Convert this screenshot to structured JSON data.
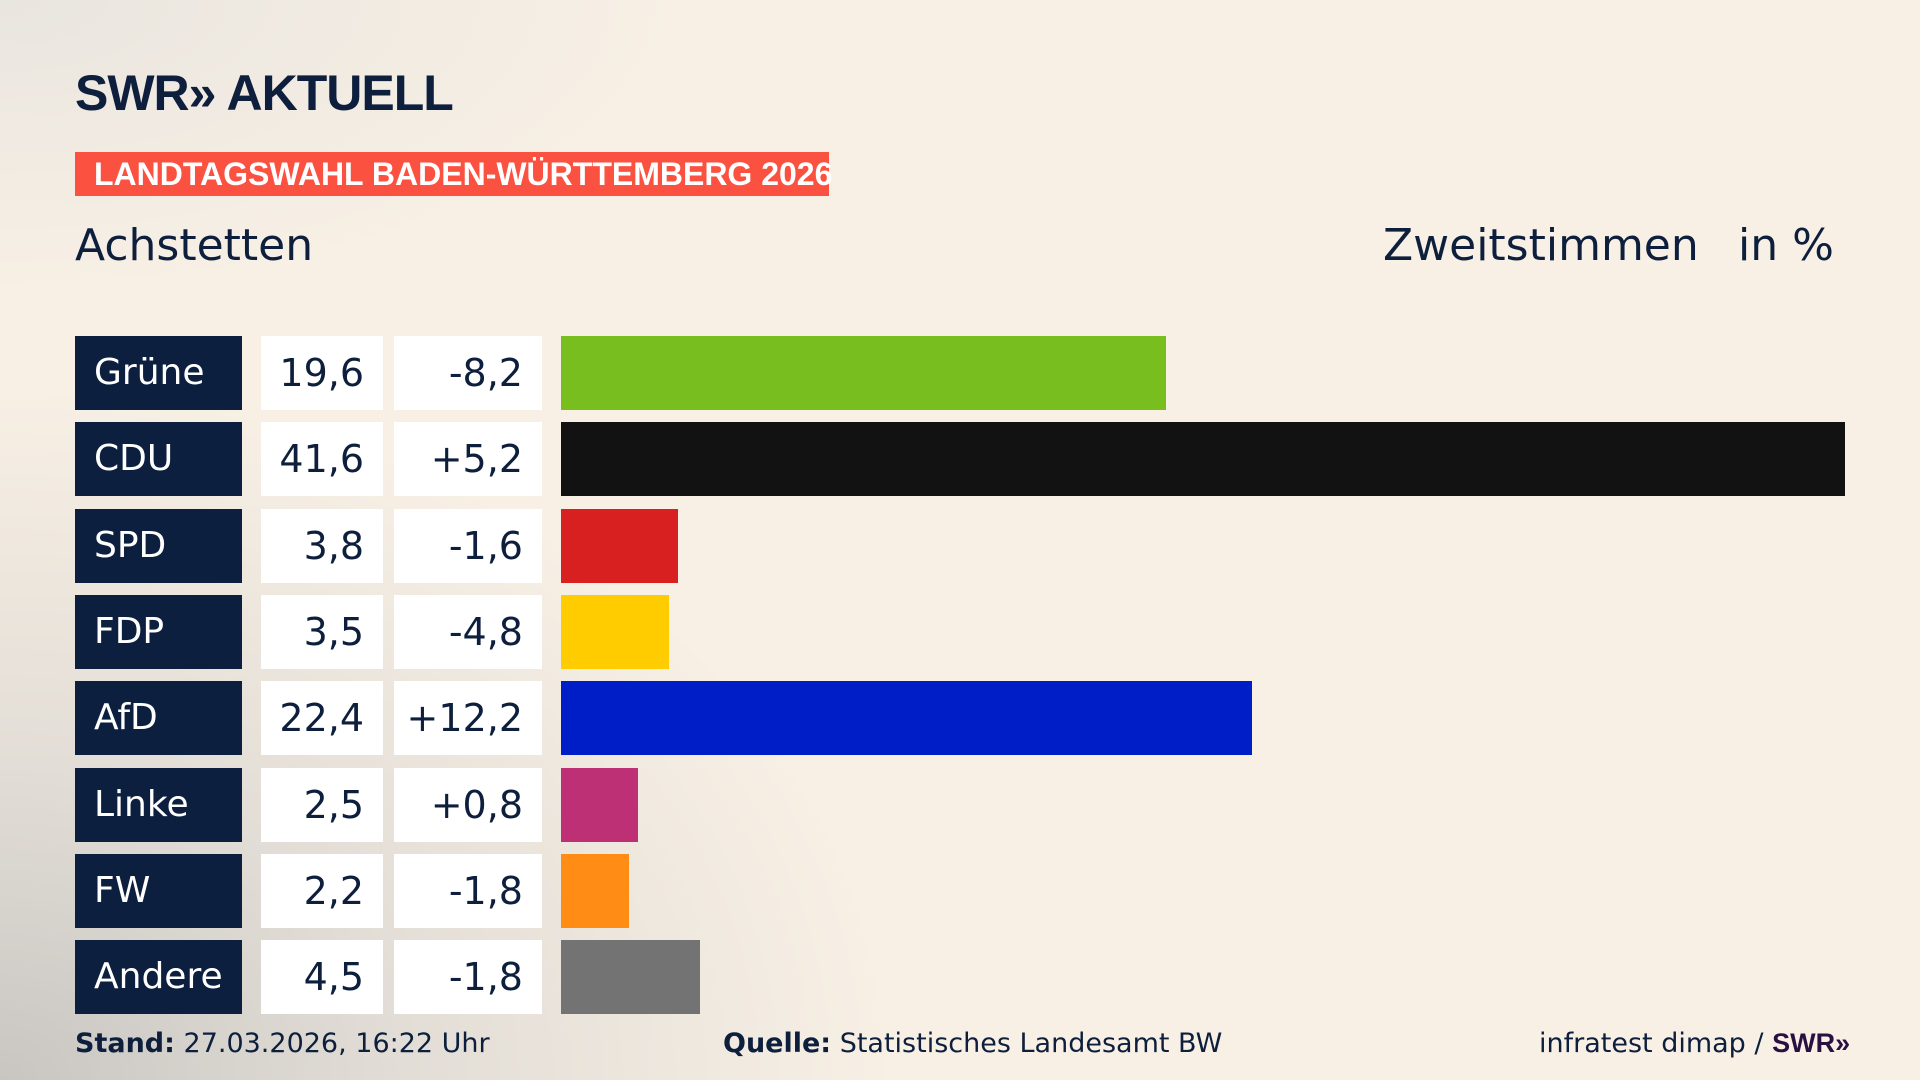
{
  "header": {
    "logo": "SWR» AKTUELL",
    "band": "LANDTAGSWAHL BADEN-WÜRTTEMBERG 2026",
    "place": "Achstetten",
    "metric": "Zweitstimmen",
    "unit": "in %"
  },
  "chart_data": {
    "type": "bar",
    "orientation": "horizontal",
    "xlim": [
      0,
      41.6
    ],
    "categories": [
      "Grüne",
      "CDU",
      "SPD",
      "FDP",
      "AfD",
      "Linke",
      "FW",
      "Andere"
    ],
    "values": [
      19.6,
      41.6,
      3.8,
      3.5,
      22.4,
      2.5,
      2.2,
      4.5
    ],
    "value_labels": [
      "19,6",
      "41,6",
      "3,8",
      "3,5",
      "22,4",
      "2,5",
      "2,2",
      "4,5"
    ],
    "change_labels": [
      "-8,2",
      "+5,2",
      "-1,6",
      "-4,8",
      "+12,2",
      "+0,8",
      "-1,8",
      "-1,8"
    ],
    "colors": [
      "#78be1e",
      "#121212",
      "#d7201f",
      "#ffcc00",
      "#001ec8",
      "#be3075",
      "#ff8c14",
      "#737373"
    ]
  },
  "footer": {
    "stand_label": "Stand:",
    "stand_value": "27.03.2026, 16:22 Uhr",
    "source_label": "Quelle:",
    "source_value": "Statistisches Landesamt BW",
    "credit": "infratest dimap /",
    "credit_logo": "SWR»"
  }
}
